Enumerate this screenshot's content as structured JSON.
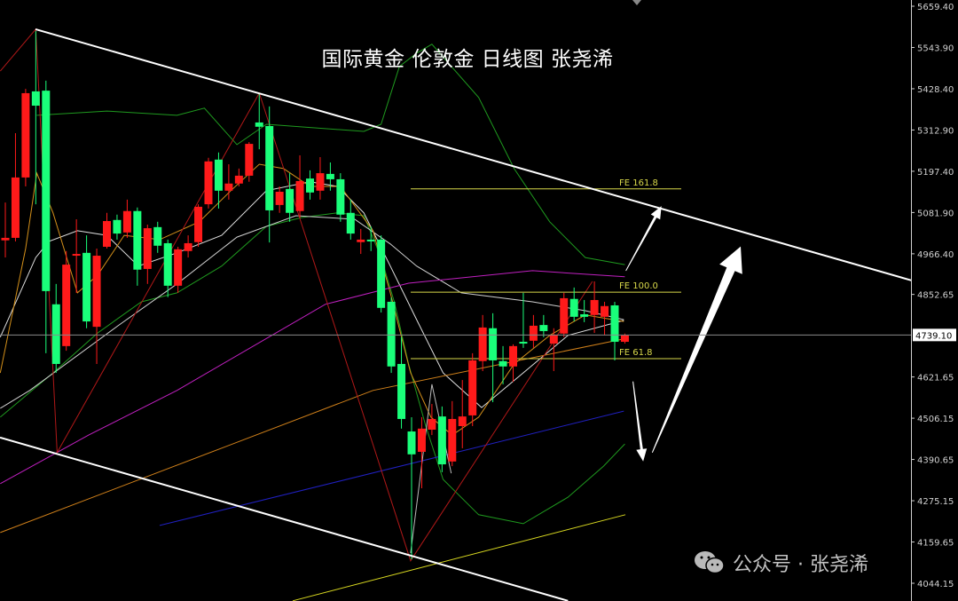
{
  "title": "国际黄金 伦敦金 日线图 张尧浠",
  "watermark": {
    "text": "公众号 · 张尧浠",
    "icon": "wechat-icon"
  },
  "colors": {
    "background": "#000000",
    "bull": "#ff1a1a",
    "bear": "#1aff7a",
    "axis_text": "#d0d0d0",
    "fe": "#d8d84a",
    "trend": "#ffffff"
  },
  "chart_data": {
    "type": "candlestick",
    "title": "国际黄金 伦敦金 日线图 张尧浠",
    "ylim": [
      4044.15,
      5659.4
    ],
    "y_ticks": [
      "5659.40",
      "5543.90",
      "5428.40",
      "5312.90",
      "5197.40",
      "5081.90",
      "4966.40",
      "4852.65",
      "4621.65",
      "4506.15",
      "4390.65",
      "4275.15",
      "4159.65",
      "4044.15"
    ],
    "current_price": "4739.10",
    "grid": false,
    "candles": [
      [
        5004,
        5110,
        4956,
        5011
      ],
      [
        5011,
        5304,
        5001,
        5180
      ],
      [
        5180,
        5428,
        5155,
        5416
      ],
      [
        5421,
        5590,
        5105,
        5381
      ],
      [
        5423,
        5451,
        4688,
        4862
      ],
      [
        4825,
        4882,
        4633,
        4658
      ],
      [
        4708,
        4974,
        4695,
        4936
      ],
      [
        4964,
        5063,
        4857,
        4966
      ],
      [
        4969,
        5018,
        4758,
        4777
      ],
      [
        4762,
        4981,
        4658,
        4961
      ],
      [
        4986,
        5081,
        4981,
        5058
      ],
      [
        5061,
        5076,
        5006,
        5023
      ],
      [
        5026,
        5118,
        5011,
        5086
      ],
      [
        5086,
        5096,
        4877,
        4922
      ],
      [
        4924,
        5048,
        4882,
        5038
      ],
      [
        5041,
        5056,
        4969,
        4989
      ],
      [
        4996,
        5006,
        4845,
        4877
      ],
      [
        4877,
        4986,
        4857,
        4979
      ],
      [
        4974,
        5018,
        4956,
        4996
      ],
      [
        4999,
        5105,
        4986,
        5098
      ],
      [
        5105,
        5235,
        5093,
        5225
      ],
      [
        5230,
        5250,
        5093,
        5143
      ],
      [
        5143,
        5217,
        5118,
        5163
      ],
      [
        5163,
        5205,
        5155,
        5185
      ],
      [
        5185,
        5279,
        5168,
        5274
      ],
      [
        5334,
        5416,
        5259,
        5322
      ],
      [
        5324,
        5379,
        4998,
        5088
      ],
      [
        5103,
        5155,
        5081,
        5140
      ],
      [
        5148,
        5192,
        5056,
        5081
      ],
      [
        5086,
        5242,
        5068,
        5170
      ],
      [
        5177,
        5200,
        5118,
        5138
      ],
      [
        5143,
        5237,
        5118,
        5192
      ],
      [
        5190,
        5222,
        5143,
        5175
      ],
      [
        5175,
        5192,
        5056,
        5076
      ],
      [
        5081,
        5118,
        5006,
        5023
      ],
      [
        4999,
        5036,
        4966,
        5006
      ],
      [
        5006,
        5043,
        4974,
        5001
      ],
      [
        5006,
        5018,
        4802,
        4815
      ],
      [
        4832,
        4844,
        4633,
        4651
      ],
      [
        4658,
        4733,
        4477,
        4504
      ],
      [
        4469,
        4509,
        4111,
        4405
      ],
      [
        4412,
        4509,
        4310,
        4477
      ],
      [
        4474,
        4546,
        4459,
        4504
      ],
      [
        4511,
        4539,
        4355,
        4377
      ],
      [
        4385,
        4554,
        4372,
        4504
      ],
      [
        4484,
        4613,
        4422,
        4511
      ],
      [
        4514,
        4688,
        4484,
        4668
      ],
      [
        4666,
        4795,
        4638,
        4760
      ],
      [
        4758,
        4800,
        4551,
        4668
      ],
      [
        4666,
        4708,
        4601,
        4651
      ],
      [
        4651,
        4713,
        4608,
        4708
      ],
      [
        4720,
        4857,
        4703,
        4715
      ],
      [
        4723,
        4795,
        4703,
        4765
      ],
      [
        4767,
        4795,
        4733,
        4750
      ],
      [
        4715,
        4758,
        4638,
        4740
      ],
      [
        4743,
        4857,
        4733,
        4842
      ],
      [
        4840,
        4872,
        4777,
        4790
      ],
      [
        4797,
        4837,
        4775,
        4790
      ],
      [
        4795,
        4889,
        4745,
        4837
      ],
      [
        4790,
        4832,
        4738,
        4820
      ],
      [
        4822,
        4832,
        4668,
        4720
      ],
      [
        4720,
        4743,
        4715,
        4738
      ]
    ],
    "candle_fields": [
      "open",
      "high",
      "low",
      "close"
    ],
    "lines": [
      {
        "color": "#1f9a1f",
        "pts": [
          [
            3.1,
            5354
          ],
          [
            10.0,
            5366
          ],
          [
            16.9,
            5354
          ],
          [
            19.6,
            5374
          ],
          [
            22.8,
            5272
          ],
          [
            25.7,
            5329
          ],
          [
            35.3,
            5309
          ],
          [
            37.0,
            5329
          ],
          [
            38.8,
            5491
          ],
          [
            40.5,
            5528
          ],
          [
            42.0,
            5553
          ],
          [
            46.6,
            5404
          ],
          [
            50.1,
            5205
          ],
          [
            53.6,
            5056
          ],
          [
            57.1,
            4956
          ],
          [
            61.0,
            4936
          ]
        ]
      },
      {
        "color": "#1f9a1f",
        "pts": [
          [
            -0.5,
            4509
          ],
          [
            4.7,
            4633
          ],
          [
            9.1,
            4745
          ],
          [
            13.4,
            4832
          ],
          [
            16.9,
            4857
          ],
          [
            21.3,
            4932
          ],
          [
            25.7,
            5043
          ],
          [
            29.2,
            5068
          ],
          [
            32.7,
            5081
          ],
          [
            35.3,
            5073
          ],
          [
            37.0,
            4956
          ],
          [
            38.3,
            4832
          ],
          [
            39.7,
            4658
          ],
          [
            41.4,
            4484
          ],
          [
            43.1,
            4335
          ],
          [
            46.6,
            4236
          ],
          [
            51.0,
            4211
          ],
          [
            55.4,
            4285
          ],
          [
            58.9,
            4372
          ],
          [
            61.0,
            4434
          ]
        ]
      },
      {
        "color": "#e0e0e0",
        "pts": [
          [
            -0.5,
            4733
          ],
          [
            3.0,
            4956
          ],
          [
            4.3,
            5001
          ],
          [
            7.1,
            5031
          ],
          [
            10.0,
            5018
          ],
          [
            13.1,
            4932
          ],
          [
            16.9,
            4969
          ],
          [
            21.3,
            5018
          ],
          [
            25.7,
            5143
          ],
          [
            30.0,
            5168
          ],
          [
            32.7,
            5155
          ],
          [
            35.3,
            5081
          ],
          [
            37.9,
            4932
          ],
          [
            40.5,
            4782
          ],
          [
            43.1,
            4633
          ],
          [
            46.9,
            4536
          ],
          [
            51.0,
            4633
          ],
          [
            55.4,
            4738
          ],
          [
            60.9,
            4780
          ]
        ]
      },
      {
        "color": "#cfcfcf",
        "pts": [
          [
            -0.5,
            4534
          ],
          [
            2.4,
            4584
          ],
          [
            11.1,
            4765
          ],
          [
            16.9,
            4882
          ],
          [
            22.8,
            5013
          ],
          [
            28.6,
            5073
          ],
          [
            34.4,
            5063
          ],
          [
            37.9,
            4994
          ],
          [
            40.5,
            4932
          ],
          [
            44.9,
            4857
          ],
          [
            51.9,
            4832
          ],
          [
            57.1,
            4807
          ],
          [
            60.9,
            4782
          ]
        ]
      },
      {
        "color": "#d4901a",
        "pts": [
          [
            -0.5,
            4633
          ],
          [
            2.0,
            4981
          ],
          [
            3.1,
            5192
          ],
          [
            4.7,
            5081
          ],
          [
            7.1,
            4857
          ],
          [
            9.1,
            4907
          ],
          [
            11.7,
            5018
          ],
          [
            15.2,
            5006
          ],
          [
            19.1,
            5056
          ],
          [
            22.2,
            5143
          ],
          [
            25.0,
            5217
          ],
          [
            27.4,
            5205
          ],
          [
            30.0,
            5155
          ],
          [
            33.0,
            5155
          ],
          [
            36.2,
            5031
          ],
          [
            37.9,
            4857
          ],
          [
            39.9,
            4633
          ],
          [
            41.9,
            4509
          ],
          [
            44.0,
            4459
          ],
          [
            46.6,
            4509
          ],
          [
            50.1,
            4658
          ],
          [
            53.6,
            4738
          ],
          [
            57.1,
            4795
          ],
          [
            60.9,
            4777
          ]
        ]
      },
      {
        "color": "#d0801a",
        "pts": [
          [
            -0.5,
            4186
          ],
          [
            36.2,
            4584
          ],
          [
            60.9,
            4728
          ]
        ]
      },
      {
        "color": "#c020c0",
        "pts": [
          [
            -0.5,
            4323
          ],
          [
            8.2,
            4459
          ],
          [
            16.9,
            4584
          ],
          [
            31.5,
            4825
          ],
          [
            39.7,
            4884
          ],
          [
            51.9,
            4919
          ],
          [
            61.0,
            4902
          ]
        ]
      },
      {
        "color": "#2020c0",
        "pts": [
          [
            15.2,
            4206
          ],
          [
            60.9,
            4526
          ]
        ]
      },
      {
        "color": "#d8d820",
        "pts": [
          [
            28.3,
            3995
          ],
          [
            61.05,
            4236
          ]
        ]
      },
      {
        "color": "#b01818",
        "pts": [
          [
            -0.5,
            5478
          ],
          [
            3.0,
            5595
          ],
          [
            5.1,
            4410
          ],
          [
            25.0,
            5416
          ],
          [
            39.9,
            4107
          ],
          [
            57.8,
            4889
          ]
        ]
      },
      {
        "color": "#bbbbbb",
        "pts": [
          [
            39.9,
            4129
          ],
          [
            42.0,
            4601
          ],
          [
            43.9,
            4352
          ]
        ]
      }
    ],
    "trendlines": [
      {
        "from": [
          2.97,
          5595
        ],
        "to": [
          89.2,
          4892
        ]
      },
      {
        "from": [
          -0.52,
          4452
        ],
        "to": [
          55.4,
          3995
        ]
      }
    ],
    "fe_levels": [
      {
        "label": "FE 161.8",
        "price": 5148
      },
      {
        "label": "FE 100.0",
        "price": 4859
      },
      {
        "label": "FE 61.8",
        "price": 4673
      }
    ],
    "arrows": [
      {
        "from": [
          61.1,
          4919
        ],
        "to": [
          64.6,
          5100
        ],
        "size": "small"
      },
      {
        "from": [
          61.8,
          4609
        ],
        "to": [
          62.8,
          4385
        ],
        "size": "small"
      },
      {
        "from": [
          63.7,
          4410
        ],
        "to": [
          72.4,
          4987
        ],
        "size": "large"
      }
    ]
  }
}
